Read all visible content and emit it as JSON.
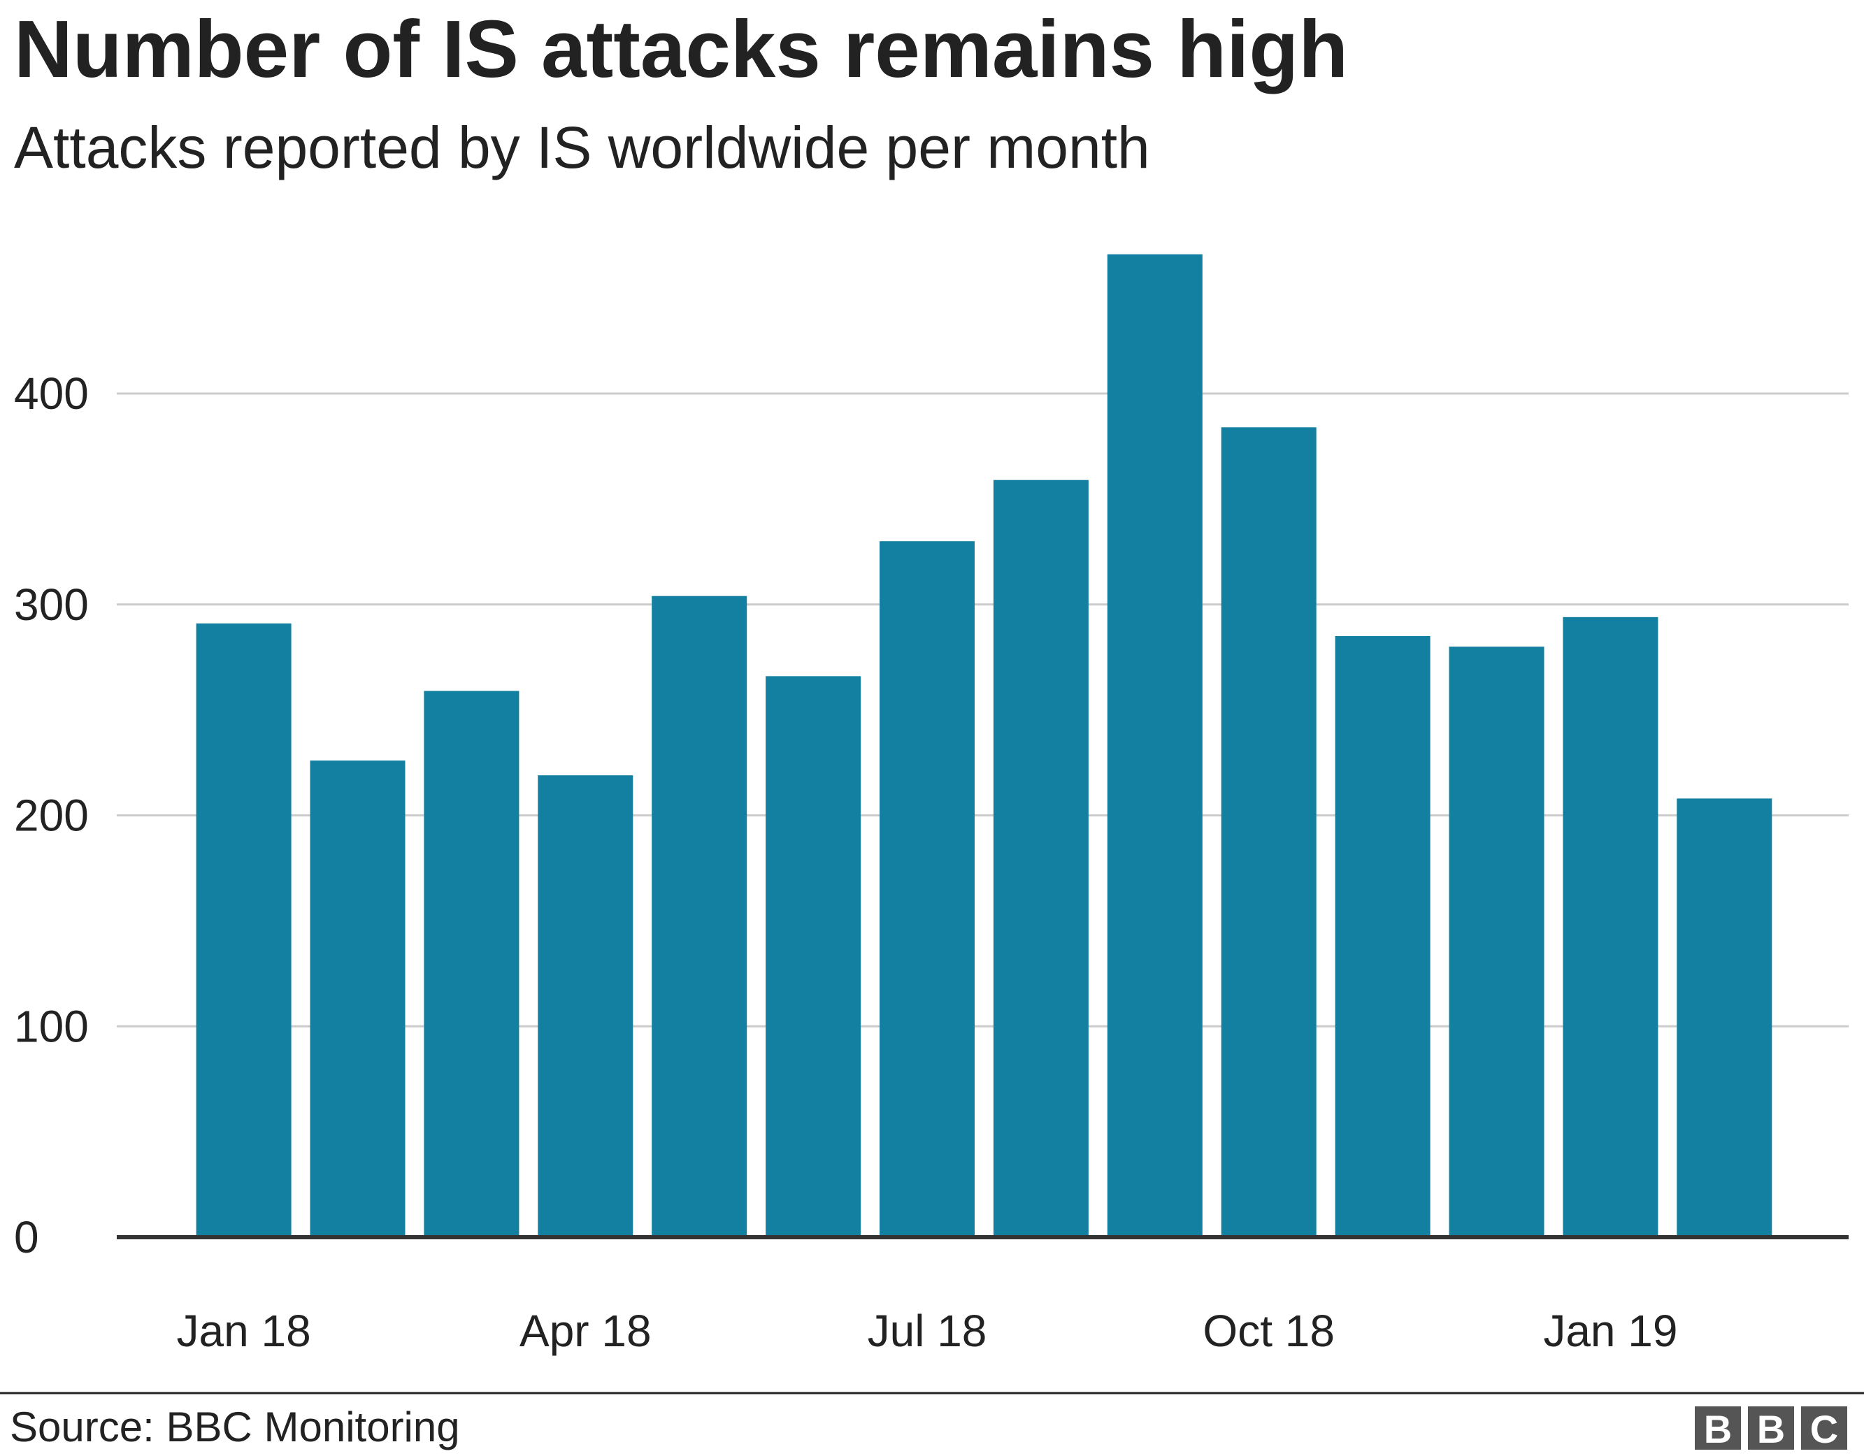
{
  "chart_data": {
    "type": "bar",
    "title": "Number of IS attacks remains high",
    "subtitle": "Attacks reported by IS worldwide per month",
    "categories": [
      "Jan 18",
      null,
      null,
      "Apr 18",
      null,
      null,
      "Jul 18",
      null,
      null,
      "Oct 18",
      null,
      null,
      "Jan 19",
      null
    ],
    "values": [
      291,
      226,
      259,
      219,
      304,
      266,
      330,
      359,
      466,
      384,
      285,
      280,
      294,
      208
    ],
    "color": "#1380a1",
    "ylim": [
      0,
      480
    ],
    "yticks": [
      0,
      100,
      200,
      300,
      400
    ],
    "grid": true,
    "source": "Source: BBC Monitoring",
    "logo": [
      "B",
      "B",
      "C"
    ]
  }
}
